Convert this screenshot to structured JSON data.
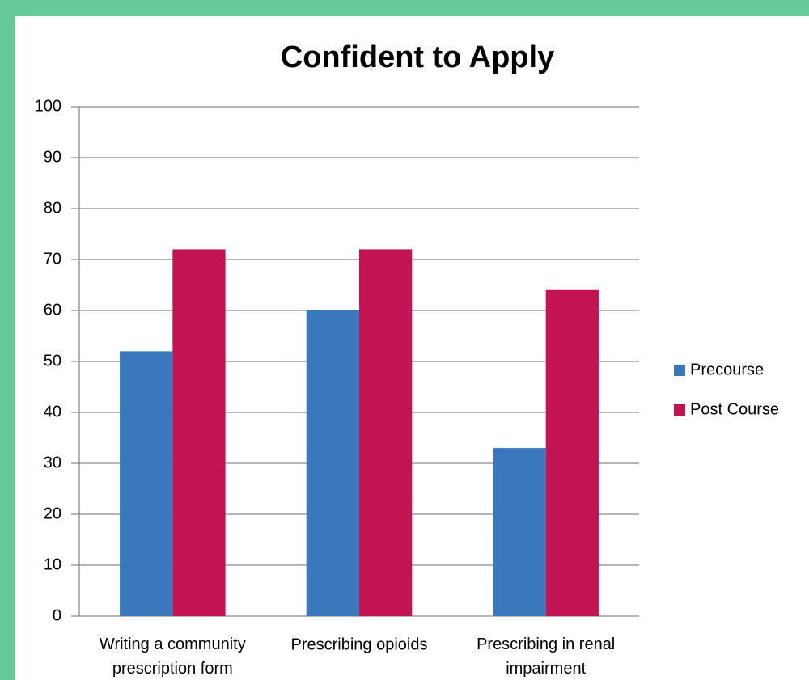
{
  "chart_data": {
    "type": "bar",
    "title": "Confident to Apply",
    "categories": [
      "Writing a community prescription form",
      "Prescribing opioids",
      "Prescribing in renal impairment"
    ],
    "series": [
      {
        "name": "Precourse",
        "color": "#3a78bd",
        "values": [
          52,
          60,
          33
        ]
      },
      {
        "name": "Post Course",
        "color": "#c41352",
        "values": [
          72,
          72,
          64
        ]
      }
    ],
    "ylim": [
      0,
      100
    ],
    "yticks": [
      0,
      10,
      20,
      30,
      40,
      50,
      60,
      70,
      80,
      90,
      100
    ],
    "grid": true,
    "legend": "right"
  }
}
